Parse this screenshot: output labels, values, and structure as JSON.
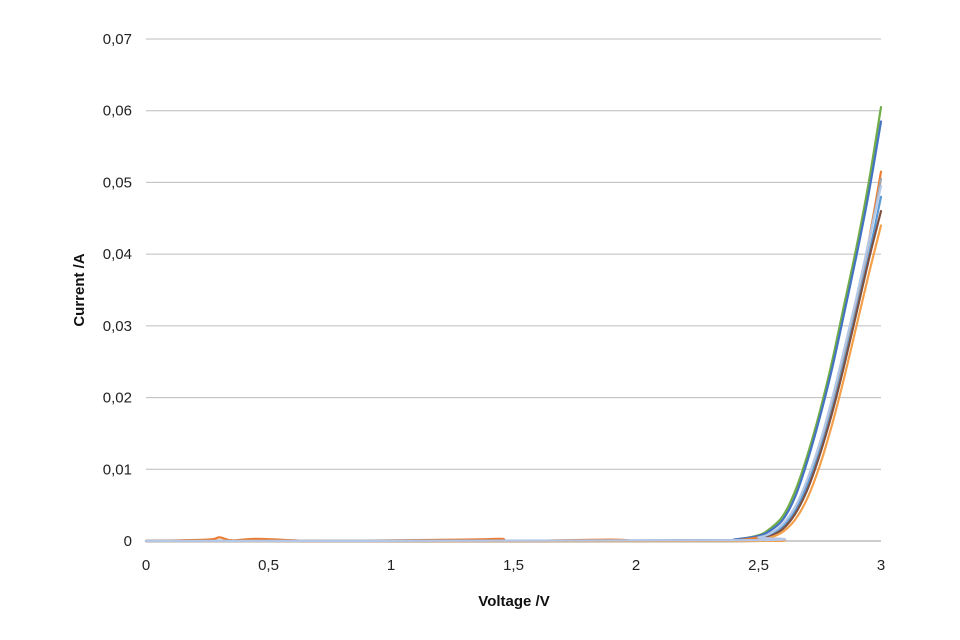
{
  "chart_data": {
    "type": "line",
    "title": "",
    "xlabel": "Voltage /V",
    "ylabel": "Current /A",
    "xlim": [
      0,
      3
    ],
    "ylim": [
      0,
      0.07
    ],
    "x_ticks": [
      "0",
      "0,5",
      "1",
      "1,5",
      "2",
      "2,5",
      "3"
    ],
    "y_ticks": [
      "0",
      "0,01",
      "0,02",
      "0,03",
      "0,04",
      "0,05",
      "0,06",
      "0,07"
    ],
    "grid": "horizontal",
    "legend": "none",
    "series": [
      {
        "color": "#70ad47",
        "points": [
          [
            0,
            0
          ],
          [
            2.3,
            0
          ],
          [
            2.4,
            0.0002
          ],
          [
            2.5,
            0.0008
          ],
          [
            2.55,
            0.0018
          ],
          [
            2.6,
            0.0035
          ],
          [
            2.65,
            0.007
          ],
          [
            2.7,
            0.012
          ],
          [
            2.75,
            0.018
          ],
          [
            2.8,
            0.025
          ],
          [
            2.85,
            0.033
          ],
          [
            2.9,
            0.041
          ],
          [
            2.95,
            0.05
          ],
          [
            3.0,
            0.0605
          ]
        ]
      },
      {
        "color": "#4472c4",
        "points": [
          [
            0,
            0
          ],
          [
            2.3,
            0
          ],
          [
            2.4,
            0.0002
          ],
          [
            2.5,
            0.0007
          ],
          [
            2.55,
            0.0015
          ],
          [
            2.6,
            0.003
          ],
          [
            2.65,
            0.0062
          ],
          [
            2.7,
            0.0112
          ],
          [
            2.75,
            0.0172
          ],
          [
            2.8,
            0.024
          ],
          [
            2.85,
            0.0318
          ],
          [
            2.9,
            0.0398
          ],
          [
            2.95,
            0.0485
          ],
          [
            3.0,
            0.0585
          ]
        ]
      },
      {
        "color": "#ed7d31",
        "points": [
          [
            0,
            0
          ],
          [
            0.25,
            0.0002
          ],
          [
            0.3,
            0.0005
          ],
          [
            0.35,
            0.0001
          ],
          [
            0.45,
            0.0003
          ],
          [
            0.6,
            0.0001
          ],
          [
            0.7,
            0
          ],
          [
            1.3,
            0.0002
          ],
          [
            1.45,
            0.0003
          ],
          [
            1.5,
            0
          ],
          [
            1.9,
            0.0002
          ],
          [
            2.0,
            0
          ],
          [
            2.2,
            0.0001
          ],
          [
            2.4,
            0.0001
          ],
          [
            2.5,
            0.0005
          ],
          [
            2.55,
            0.001
          ],
          [
            2.6,
            0.002
          ],
          [
            2.65,
            0.004
          ],
          [
            2.7,
            0.0075
          ],
          [
            2.75,
            0.0125
          ],
          [
            2.8,
            0.0185
          ],
          [
            2.85,
            0.0255
          ],
          [
            2.9,
            0.0332
          ],
          [
            2.95,
            0.0418
          ],
          [
            3.0,
            0.0515
          ]
        ]
      },
      {
        "color": "#a5a5a5",
        "points": [
          [
            0,
            0
          ],
          [
            2.4,
            0.0001
          ],
          [
            2.5,
            0.0005
          ],
          [
            2.55,
            0.001
          ],
          [
            2.6,
            0.0022
          ],
          [
            2.65,
            0.0045
          ],
          [
            2.7,
            0.0082
          ],
          [
            2.75,
            0.013
          ],
          [
            2.8,
            0.019
          ],
          [
            2.85,
            0.026
          ],
          [
            2.9,
            0.0335
          ],
          [
            2.95,
            0.0415
          ],
          [
            3.0,
            0.0505
          ]
        ]
      },
      {
        "color": "#5b9bd5",
        "points": [
          [
            0,
            0
          ],
          [
            2.4,
            0.0001
          ],
          [
            2.5,
            0.0004
          ],
          [
            2.55,
            0.0009
          ],
          [
            2.6,
            0.002
          ],
          [
            2.65,
            0.0042
          ],
          [
            2.7,
            0.0078
          ],
          [
            2.75,
            0.0125
          ],
          [
            2.8,
            0.0182
          ],
          [
            2.85,
            0.025
          ],
          [
            2.9,
            0.0322
          ],
          [
            2.95,
            0.0398
          ],
          [
            3.0,
            0.048
          ]
        ]
      },
      {
        "color": "#7f4f3f",
        "points": [
          [
            0,
            0
          ],
          [
            2.4,
            0
          ],
          [
            2.5,
            0.0003
          ],
          [
            2.55,
            0.0007
          ],
          [
            2.6,
            0.0017
          ],
          [
            2.65,
            0.0038
          ],
          [
            2.7,
            0.0072
          ],
          [
            2.75,
            0.012
          ],
          [
            2.8,
            0.0178
          ],
          [
            2.85,
            0.0245
          ],
          [
            2.9,
            0.0318
          ],
          [
            2.95,
            0.0392
          ],
          [
            3.0,
            0.046
          ]
        ]
      },
      {
        "color": "#f4a04a",
        "points": [
          [
            0,
            0
          ],
          [
            2.4,
            0
          ],
          [
            2.5,
            0.0002
          ],
          [
            2.55,
            0.0005
          ],
          [
            2.6,
            0.0013
          ],
          [
            2.65,
            0.003
          ],
          [
            2.7,
            0.006
          ],
          [
            2.75,
            0.0105
          ],
          [
            2.8,
            0.0162
          ],
          [
            2.85,
            0.0228
          ],
          [
            2.9,
            0.03
          ],
          [
            2.95,
            0.0372
          ],
          [
            3.0,
            0.044
          ]
        ]
      },
      {
        "color": "#b4c7e7",
        "points": [
          [
            0,
            0
          ],
          [
            2.4,
            0.0001
          ],
          [
            2.5,
            0.0005
          ],
          [
            2.55,
            0.0011
          ],
          [
            2.6,
            0.0024
          ],
          [
            2.65,
            0.0048
          ],
          [
            2.7,
            0.0087
          ],
          [
            2.75,
            0.0137
          ],
          [
            2.8,
            0.0198
          ],
          [
            2.85,
            0.0268
          ],
          [
            2.9,
            0.034
          ],
          [
            2.95,
            0.0418
          ],
          [
            3.0,
            0.0495
          ]
        ]
      }
    ]
  }
}
